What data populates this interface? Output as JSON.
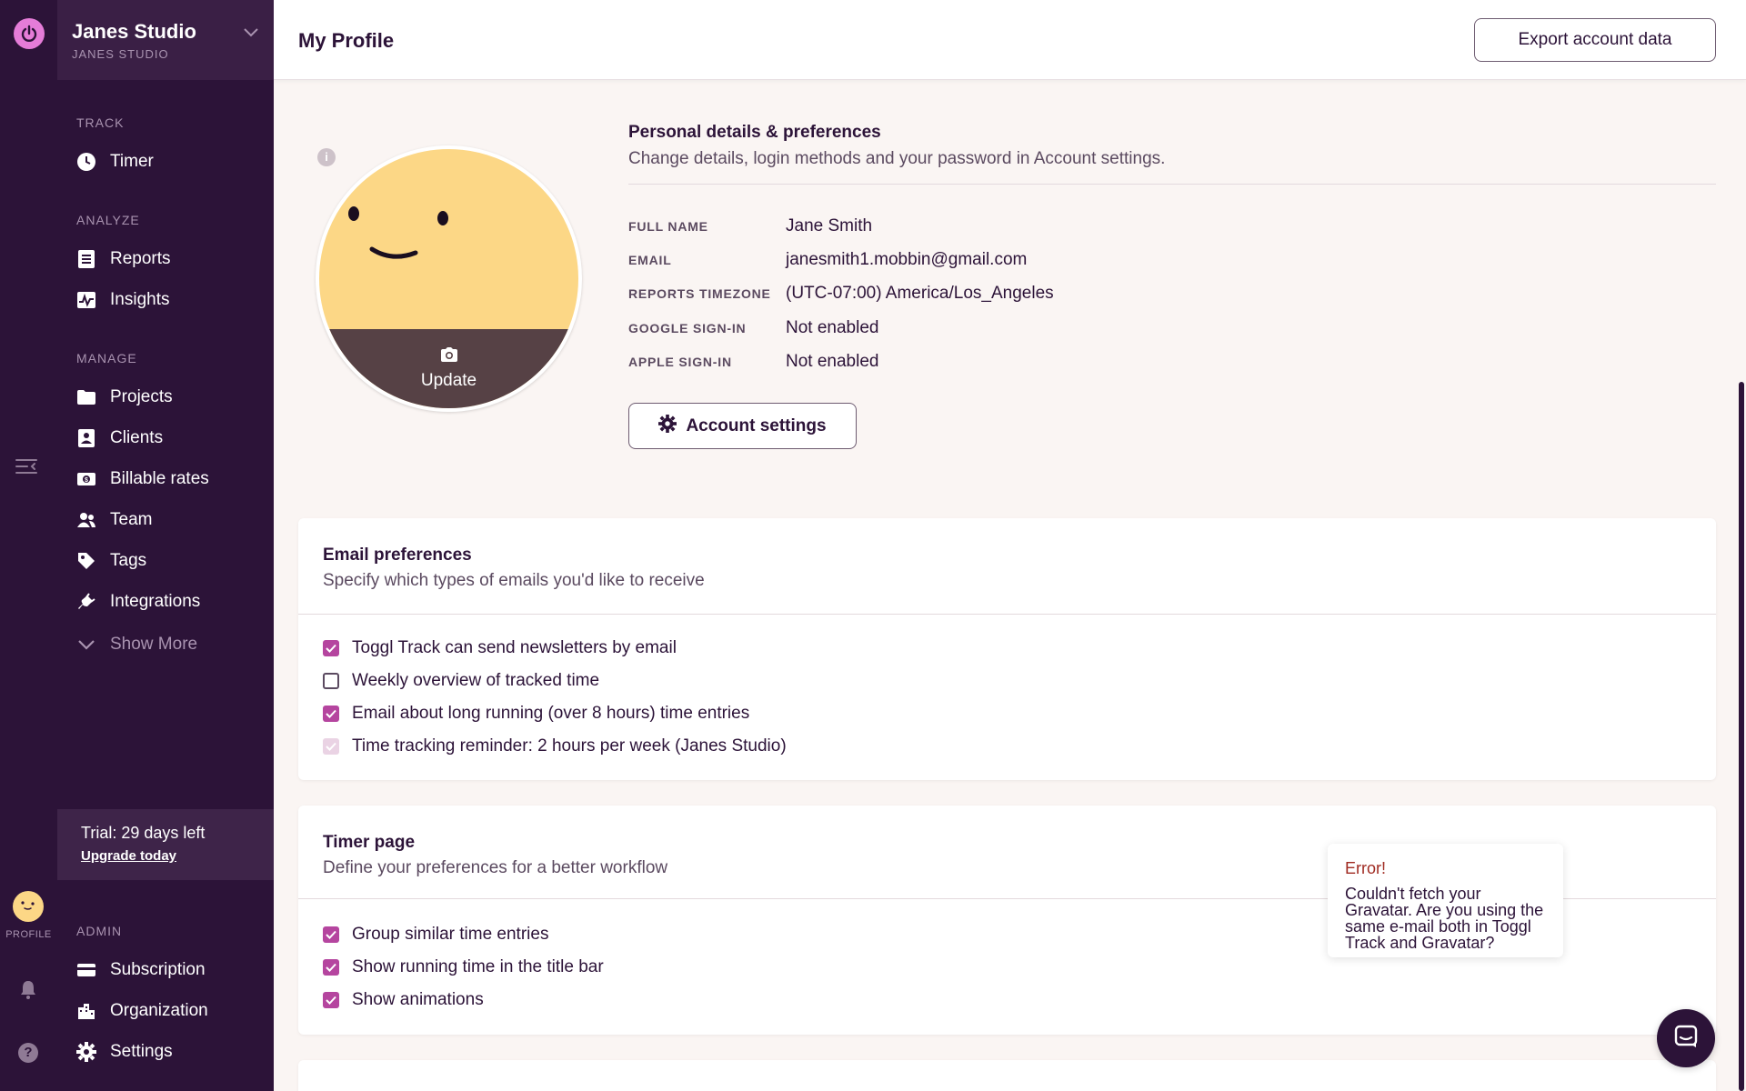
{
  "rail": {
    "profile_label": "PROFILE"
  },
  "sidebar": {
    "workspace_name": "Janes Studio",
    "workspace_sub": "JANES STUDIO",
    "sections": {
      "track": "TRACK",
      "analyze": "ANALYZE",
      "manage": "MANAGE",
      "admin": "ADMIN"
    },
    "items": {
      "timer": "Timer",
      "reports": "Reports",
      "insights": "Insights",
      "projects": "Projects",
      "clients": "Clients",
      "billable_rates": "Billable rates",
      "team": "Team",
      "tags": "Tags",
      "integrations": "Integrations",
      "show_more": "Show More",
      "subscription": "Subscription",
      "organization": "Organization",
      "settings": "Settings"
    },
    "trial": {
      "text": "Trial: 29 days left",
      "link": "Upgrade today"
    }
  },
  "header": {
    "title": "My Profile",
    "export_label": "Export account data"
  },
  "profile": {
    "update_label": "Update",
    "section_title": "Personal details & preferences",
    "section_sub": "Change details, login methods and your password in Account settings.",
    "fields": [
      {
        "label": "FULL NAME",
        "value": "Jane Smith"
      },
      {
        "label": "EMAIL",
        "value": "janesmith1.mobbin@gmail.com"
      },
      {
        "label": "REPORTS TIMEZONE",
        "value": "(UTC-07:00) America/Los_Angeles"
      },
      {
        "label": "GOOGLE SIGN-IN",
        "value": "Not enabled"
      },
      {
        "label": "APPLE SIGN-IN",
        "value": "Not enabled"
      }
    ],
    "account_settings_label": "Account settings"
  },
  "email_prefs": {
    "title": "Email preferences",
    "sub": "Specify which types of emails you'd like to receive",
    "options": [
      {
        "label": "Toggl Track can send newsletters by email",
        "state": "checked"
      },
      {
        "label": "Weekly overview of tracked time",
        "state": "unchecked"
      },
      {
        "label": "Email about long running (over 8 hours) time entries",
        "state": "checked"
      },
      {
        "label": "Time tracking reminder: 2 hours per week (Janes Studio)",
        "state": "disabled-checked"
      }
    ]
  },
  "timer_page": {
    "title": "Timer page",
    "sub": "Define your preferences for a better workflow",
    "options": [
      {
        "label": "Group similar time entries",
        "state": "checked"
      },
      {
        "label": "Show running time in the title bar",
        "state": "checked"
      },
      {
        "label": "Show animations",
        "state": "checked"
      }
    ]
  },
  "error_toast": {
    "title": "Error!",
    "body": "Couldn't fetch your Gravatar. Are you using the same e-mail both in Toggl Track and Gravatar?"
  },
  "colors": {
    "sidebar_bg": "#2c1338",
    "accent": "#b5459f",
    "avatar_yellow": "#fcd786",
    "error": "#a02b22"
  }
}
